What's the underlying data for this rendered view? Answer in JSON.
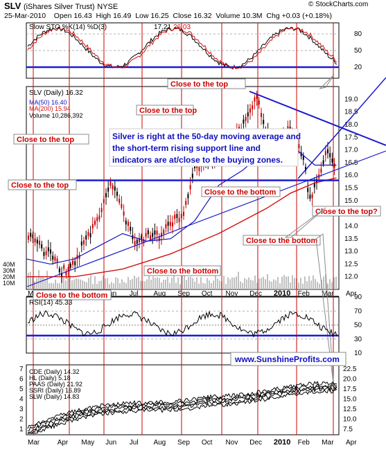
{
  "header": {
    "ticker": "SLV",
    "name": "(iShares Silver Trust)",
    "exchange": "NYSE",
    "date": "25-Mar-2010",
    "open_label": "Open",
    "open": "16.43",
    "high_label": "High",
    "high": "16.49",
    "low_label": "Low",
    "low": "16.25",
    "close_label": "Close",
    "close": "16.32",
    "volume_label": "Volume",
    "volume": "10.3M",
    "chg_label": "Chg",
    "chg": "+0.03 (+0.18%)",
    "credit": "© StockCharts.com"
  },
  "colors": {
    "price_up": "#000000",
    "price_down": "#cc0000",
    "ma50": "#1010c0",
    "ma200": "#d01010",
    "volume": "#c0c0c0",
    "blue_line": "#1a1ad0",
    "red_line": "#cc0000",
    "annotation_text": "#cc0000"
  },
  "chart_data": [
    {
      "type": "line",
      "panel": "stochastic",
      "legend": "Slow STO %K(14) %D(3)",
      "values_text": [
        "17.21",
        "26.03"
      ],
      "k_value": 17.21,
      "d_value": 26.03,
      "ylim": [
        0,
        100
      ],
      "yticks": [
        20,
        50,
        80
      ],
      "note": "oscillates between approximately 20 and 90 through the period"
    },
    {
      "type": "candlestick",
      "panel": "price",
      "legend": [
        {
          "name": "SLV (Daily)",
          "value": "16.32"
        },
        {
          "name": "MA(50)",
          "value": "16.40"
        },
        {
          "name": "MA(200)",
          "value": "15.94"
        },
        {
          "name": "Volume",
          "value": "10,286,392"
        }
      ],
      "ylim": [
        11.5,
        19.5
      ],
      "yticks": [
        12.0,
        12.5,
        13.0,
        13.5,
        14.0,
        14.5,
        15.0,
        15.5,
        16.0,
        16.5,
        17.0,
        17.5,
        18.0,
        18.5,
        19.0
      ],
      "volume_ticks": [
        "40M",
        "30M",
        "20M",
        "10M"
      ],
      "months": [
        "Mar",
        "Apr",
        "May",
        "Jun",
        "Jul",
        "Aug",
        "Sep",
        "Oct",
        "Nov",
        "Dec",
        "2010",
        "Feb",
        "Mar",
        "Apr"
      ],
      "price_path": [
        {
          "x": 0.0,
          "y": 13.8
        },
        {
          "x": 0.5,
          "y": 13.2
        },
        {
          "x": 1.0,
          "y": 12.9
        },
        {
          "x": 1.5,
          "y": 12.2
        },
        {
          "x": 2.0,
          "y": 12.5
        },
        {
          "x": 2.5,
          "y": 13.6
        },
        {
          "x": 3.0,
          "y": 14.2
        },
        {
          "x": 3.5,
          "y": 15.8
        },
        {
          "x": 4.0,
          "y": 14.6
        },
        {
          "x": 4.5,
          "y": 13.3
        },
        {
          "x": 5.0,
          "y": 13.6
        },
        {
          "x": 5.5,
          "y": 13.6
        },
        {
          "x": 6.0,
          "y": 14.1
        },
        {
          "x": 6.5,
          "y": 14.4
        },
        {
          "x": 7.0,
          "y": 16.3
        },
        {
          "x": 7.5,
          "y": 16.5
        },
        {
          "x": 8.0,
          "y": 16.8
        },
        {
          "x": 8.5,
          "y": 17.3
        },
        {
          "x": 9.0,
          "y": 17.9
        },
        {
          "x": 9.6,
          "y": 19.1
        },
        {
          "x": 10.0,
          "y": 17.6
        },
        {
          "x": 10.5,
          "y": 17.2
        },
        {
          "x": 11.0,
          "y": 18.0
        },
        {
          "x": 11.5,
          "y": 16.8
        },
        {
          "x": 11.8,
          "y": 15.0
        },
        {
          "x": 12.0,
          "y": 15.5
        },
        {
          "x": 12.5,
          "y": 17.1
        },
        {
          "x": 12.9,
          "y": 16.3
        }
      ],
      "ma50_path": [
        {
          "x": 0.0,
          "y": 12.7
        },
        {
          "x": 1.0,
          "y": 12.5
        },
        {
          "x": 2.0,
          "y": 12.7
        },
        {
          "x": 3.0,
          "y": 13.2
        },
        {
          "x": 4.0,
          "y": 13.7
        },
        {
          "x": 5.0,
          "y": 13.4
        },
        {
          "x": 6.0,
          "y": 13.5
        },
        {
          "x": 7.0,
          "y": 14.2
        },
        {
          "x": 8.0,
          "y": 15.6
        },
        {
          "x": 9.0,
          "y": 16.2
        },
        {
          "x": 10.0,
          "y": 17.0
        },
        {
          "x": 11.0,
          "y": 17.2
        },
        {
          "x": 12.0,
          "y": 16.4
        },
        {
          "x": 12.9,
          "y": 16.4
        }
      ],
      "ma200_path": [
        {
          "x": 0.0,
          "y": 12.0
        },
        {
          "x": 2.0,
          "y": 12.0
        },
        {
          "x": 4.0,
          "y": 12.3
        },
        {
          "x": 6.0,
          "y": 12.9
        },
        {
          "x": 8.0,
          "y": 13.7
        },
        {
          "x": 10.0,
          "y": 14.7
        },
        {
          "x": 11.0,
          "y": 15.3
        },
        {
          "x": 12.0,
          "y": 15.7
        },
        {
          "x": 12.9,
          "y": 15.9
        }
      ],
      "support_line_level": 15.8,
      "annotations": [
        "Close to the top",
        "Close to the top",
        "Close to the top",
        "Close to the top",
        "Close to the bottom",
        "Close to the bottom",
        "Close to the bottom",
        "Close to the bottom",
        "Close to the top?"
      ],
      "commentary": "Silver is right at the 50-day moving average and the short-term rising support line and indicators are at/close to the buying zones."
    },
    {
      "type": "line",
      "panel": "rsi",
      "legend": "RSI(14)",
      "value": "45.33",
      "ylim": [
        10,
        90
      ],
      "yticks": [
        10,
        30,
        50,
        70,
        90
      ],
      "note": "oscillates mostly between 35 and 70 through the period"
    },
    {
      "type": "line",
      "panel": "comparison",
      "series": [
        {
          "name": "CDE (Daily)",
          "last": "14.32"
        },
        {
          "name": "HL (Daily)",
          "last": "5.18"
        },
        {
          "name": "PAAS (Daily)",
          "last": "21.92"
        },
        {
          "name": "SSRI (Daily)",
          "last": "16.89"
        },
        {
          "name": "SLW (Daily)",
          "last": "14.83"
        }
      ],
      "left_ticks": [
        1,
        2,
        3,
        4,
        5,
        6,
        7
      ],
      "right_ticks": [
        7.5,
        10.0,
        12.5,
        15.0,
        17.5,
        20.0,
        22.5
      ],
      "months": [
        "Mar",
        "Apr",
        "May",
        "Jun",
        "Jul",
        "Aug",
        "Sep",
        "Oct",
        "Nov",
        "Dec",
        "2010",
        "Feb",
        "Mar",
        "Apr"
      ]
    }
  ],
  "website": "www.SunshineProfits.com"
}
